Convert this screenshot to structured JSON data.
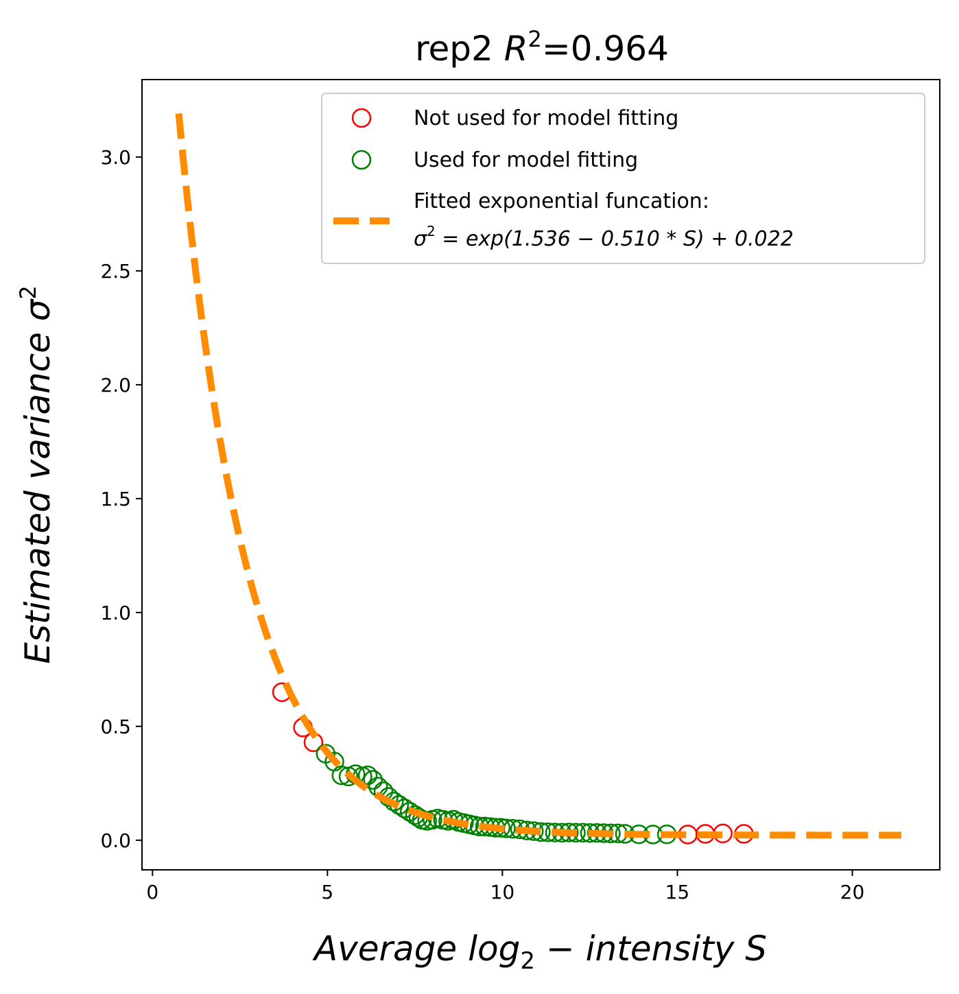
{
  "chart_data": {
    "type": "scatter",
    "title_prefix": "rep2 ",
    "title_r": "R",
    "title_sup": "2",
    "title_value": "=0.964",
    "xlabel": "Average log",
    "xlabel_sub": "2",
    "xlabel_rest": " − intensity S",
    "ylabel": "Estimated variance σ",
    "ylabel_sup": "2",
    "xlim": [
      -0.3,
      22.5
    ],
    "ylim": [
      -0.13,
      3.34
    ],
    "x_ticks": [
      0,
      5,
      10,
      15,
      20
    ],
    "x_tick_labels": [
      "0",
      "5",
      "10",
      "15",
      "20"
    ],
    "y_ticks": [
      0.0,
      0.5,
      1.0,
      1.5,
      2.0,
      2.5,
      3.0
    ],
    "y_tick_labels": [
      "0.0",
      "0.5",
      "1.0",
      "1.5",
      "2.0",
      "2.5",
      "3.0"
    ],
    "legend_position": "upper right",
    "colors": {
      "not_used": "#ff0000",
      "used": "#008000",
      "fit": "#ff8c00"
    },
    "legend": {
      "not_used": "Not used for model fitting",
      "used": "Used for model fitting",
      "fit_line1": "Fitted exponential funcation:",
      "fit_line2_a": "σ",
      "fit_line2_sup": "2",
      "fit_line2_b": " = exp(1.536 − 0.510 * S) + 0.022"
    },
    "fit": {
      "a": 1.536,
      "b": 0.51,
      "c": 0.022,
      "x_start": 0.75,
      "x_end": 21.4
    },
    "series": [
      {
        "name": "Not used for model fitting",
        "role": "not_used",
        "points": [
          [
            3.7,
            0.65
          ],
          [
            4.3,
            0.495
          ],
          [
            4.6,
            0.43
          ],
          [
            15.3,
            0.025
          ],
          [
            15.8,
            0.028
          ],
          [
            16.3,
            0.03
          ],
          [
            16.9,
            0.028
          ]
        ]
      },
      {
        "name": "Used for model fitting",
        "role": "used",
        "points": [
          [
            4.95,
            0.38
          ],
          [
            5.2,
            0.345
          ],
          [
            5.4,
            0.285
          ],
          [
            5.6,
            0.28
          ],
          [
            5.8,
            0.29
          ],
          [
            6.0,
            0.28
          ],
          [
            6.15,
            0.285
          ],
          [
            6.3,
            0.265
          ],
          [
            6.45,
            0.235
          ],
          [
            6.6,
            0.215
          ],
          [
            6.75,
            0.19
          ],
          [
            6.9,
            0.17
          ],
          [
            7.05,
            0.155
          ],
          [
            7.2,
            0.14
          ],
          [
            7.35,
            0.125
          ],
          [
            7.5,
            0.11
          ],
          [
            7.6,
            0.1
          ],
          [
            7.7,
            0.09
          ],
          [
            7.85,
            0.085
          ],
          [
            8.0,
            0.09
          ],
          [
            8.15,
            0.095
          ],
          [
            8.3,
            0.09
          ],
          [
            8.45,
            0.085
          ],
          [
            8.6,
            0.09
          ],
          [
            8.75,
            0.08
          ],
          [
            8.9,
            0.075
          ],
          [
            9.05,
            0.07
          ],
          [
            9.2,
            0.065
          ],
          [
            9.35,
            0.06
          ],
          [
            9.5,
            0.06
          ],
          [
            9.65,
            0.058
          ],
          [
            9.8,
            0.055
          ],
          [
            9.95,
            0.055
          ],
          [
            10.1,
            0.052
          ],
          [
            10.3,
            0.05
          ],
          [
            10.5,
            0.048
          ],
          [
            10.7,
            0.043
          ],
          [
            10.9,
            0.04
          ],
          [
            11.1,
            0.036
          ],
          [
            11.3,
            0.035
          ],
          [
            11.5,
            0.034
          ],
          [
            11.7,
            0.033
          ],
          [
            11.9,
            0.034
          ],
          [
            12.1,
            0.033
          ],
          [
            12.3,
            0.033
          ],
          [
            12.5,
            0.032
          ],
          [
            12.7,
            0.032
          ],
          [
            12.9,
            0.031
          ],
          [
            13.1,
            0.03
          ],
          [
            13.3,
            0.03
          ],
          [
            13.5,
            0.028
          ],
          [
            13.9,
            0.026
          ],
          [
            14.3,
            0.025
          ],
          [
            14.7,
            0.026
          ]
        ]
      }
    ]
  }
}
